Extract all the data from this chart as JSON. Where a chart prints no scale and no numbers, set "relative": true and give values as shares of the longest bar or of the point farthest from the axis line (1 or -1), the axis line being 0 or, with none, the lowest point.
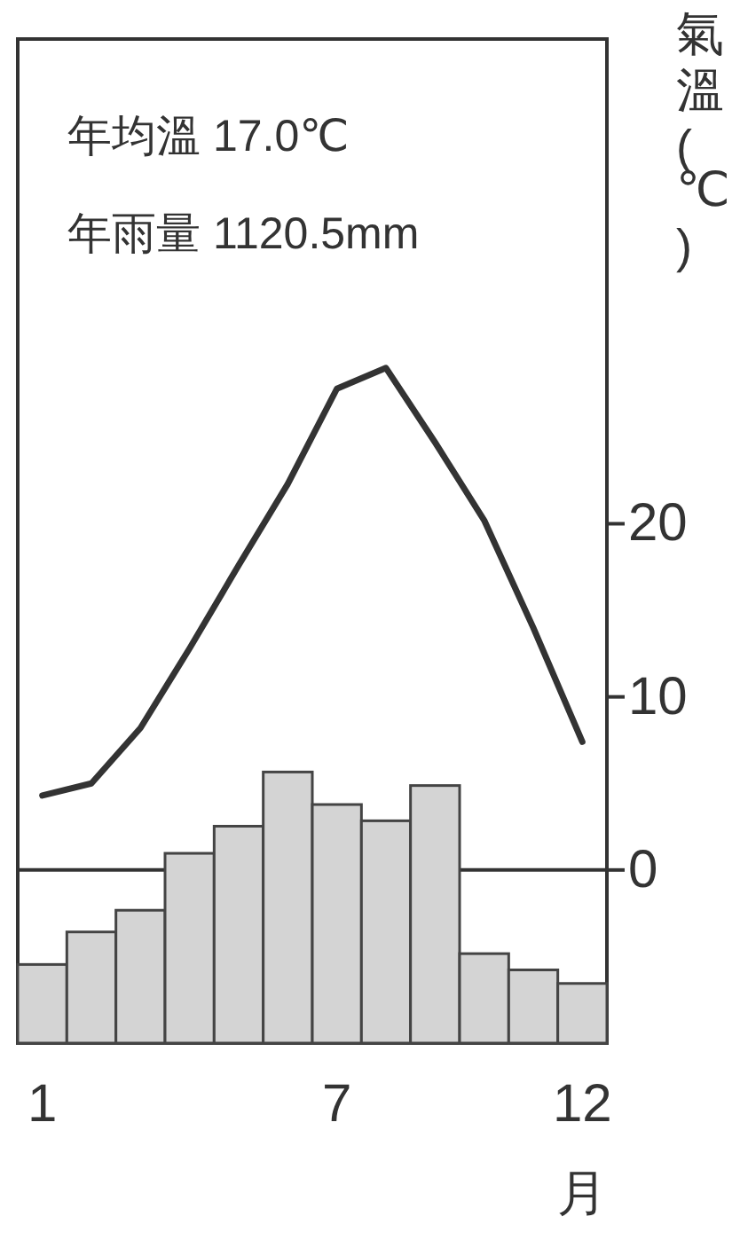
{
  "chart_data": [
    {
      "type": "line",
      "ylabel": "氣溫(℃)",
      "xlabel": "月",
      "annotations": [
        "年均溫 17.0℃",
        "年雨量 1120.5mm"
      ],
      "categories": [
        "1",
        null,
        null,
        null,
        null,
        null,
        "7",
        null,
        null,
        null,
        null,
        "12"
      ],
      "series": [
        {
          "color": "#333333",
          "values": [
            4.3,
            5.0,
            8.2,
            12.8,
            17.6,
            22.3,
            27.8,
            29.0,
            24.7,
            20.2,
            14.0,
            7.4
          ]
        }
      ],
      "ylim": [
        -10,
        48
      ],
      "yticks": [
        0,
        10,
        20
      ],
      "ref_lines": [
        {
          "axis": "y",
          "value": 0,
          "color": "#333333"
        }
      ]
    },
    {
      "type": "bar",
      "relative": true,
      "categories": [
        null,
        null,
        null,
        null,
        null,
        null,
        null,
        null,
        null,
        null,
        null,
        null
      ],
      "series": [
        {
          "color": "#d4d4d4",
          "values": [
            0.29,
            0.41,
            0.49,
            0.7,
            0.8,
            1,
            0.88,
            0.82,
            0.95,
            0.33,
            0.27,
            0.22
          ]
        }
      ]
    }
  ]
}
